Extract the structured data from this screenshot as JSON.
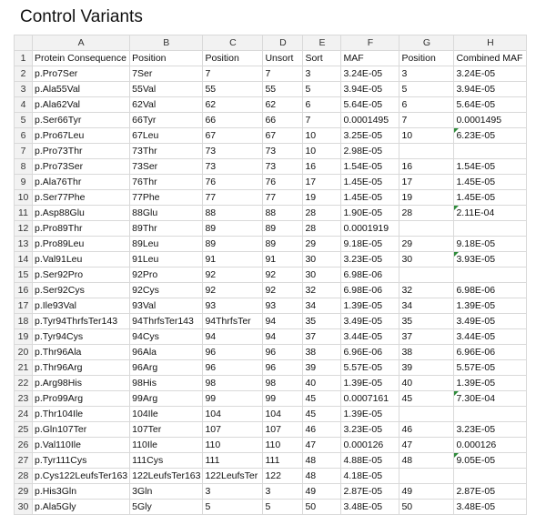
{
  "title": "Control Variants",
  "columns": [
    "A",
    "B",
    "C",
    "D",
    "E",
    "F",
    "G",
    "H"
  ],
  "indicator_color": "#2e8b3a",
  "rows": [
    {
      "num": "1",
      "cells": [
        "Protein Consequence",
        "Position",
        "Position",
        "Unsort",
        "Sort",
        "MAF",
        "Position",
        "Combined MAF"
      ],
      "flags": []
    },
    {
      "num": "2",
      "cells": [
        "p.Pro7Ser",
        "7Ser",
        "7",
        "7",
        "3",
        "3.24E-05",
        "3",
        "3.24E-05"
      ],
      "flags": []
    },
    {
      "num": "3",
      "cells": [
        "p.Ala55Val",
        "55Val",
        "55",
        "55",
        "5",
        "3.94E-05",
        "5",
        "3.94E-05"
      ],
      "flags": []
    },
    {
      "num": "4",
      "cells": [
        "p.Ala62Val",
        "62Val",
        "62",
        "62",
        "6",
        "5.64E-05",
        "6",
        "5.64E-05"
      ],
      "flags": []
    },
    {
      "num": "5",
      "cells": [
        "p.Ser66Tyr",
        "66Tyr",
        "66",
        "66",
        "7",
        "0.0001495",
        "7",
        "0.0001495"
      ],
      "flags": []
    },
    {
      "num": "6",
      "cells": [
        "p.Pro67Leu",
        "67Leu",
        "67",
        "67",
        "10",
        "3.25E-05",
        "10",
        "6.23E-05"
      ],
      "flags": [
        7
      ]
    },
    {
      "num": "7",
      "cells": [
        "p.Pro73Thr",
        "73Thr",
        "73",
        "73",
        "10",
        "2.98E-05",
        "",
        ""
      ],
      "flags": []
    },
    {
      "num": "8",
      "cells": [
        "p.Pro73Ser",
        "73Ser",
        "73",
        "73",
        "16",
        "1.54E-05",
        "16",
        "1.54E-05"
      ],
      "flags": []
    },
    {
      "num": "9",
      "cells": [
        "p.Ala76Thr",
        "76Thr",
        "76",
        "76",
        "17",
        "1.45E-05",
        "17",
        "1.45E-05"
      ],
      "flags": []
    },
    {
      "num": "10",
      "cells": [
        "p.Ser77Phe",
        "77Phe",
        "77",
        "77",
        "19",
        "1.45E-05",
        "19",
        "1.45E-05"
      ],
      "flags": []
    },
    {
      "num": "11",
      "cells": [
        "p.Asp88Glu",
        "88Glu",
        "88",
        "88",
        "28",
        "1.90E-05",
        "28",
        "2.11E-04"
      ],
      "flags": [
        7
      ]
    },
    {
      "num": "12",
      "cells": [
        "p.Pro89Thr",
        "89Thr",
        "89",
        "89",
        "28",
        "0.0001919",
        "",
        ""
      ],
      "flags": []
    },
    {
      "num": "13",
      "cells": [
        "p.Pro89Leu",
        "89Leu",
        "89",
        "89",
        "29",
        "9.18E-05",
        "29",
        "9.18E-05"
      ],
      "flags": []
    },
    {
      "num": "14",
      "cells": [
        "p.Val91Leu",
        "91Leu",
        "91",
        "91",
        "30",
        "3.23E-05",
        "30",
        "3.93E-05"
      ],
      "flags": [
        7
      ]
    },
    {
      "num": "15",
      "cells": [
        "p.Ser92Pro",
        "92Pro",
        "92",
        "92",
        "30",
        "6.98E-06",
        "",
        ""
      ],
      "flags": []
    },
    {
      "num": "16",
      "cells": [
        "p.Ser92Cys",
        "92Cys",
        "92",
        "92",
        "32",
        "6.98E-06",
        "32",
        "6.98E-06"
      ],
      "flags": []
    },
    {
      "num": "17",
      "cells": [
        "p.Ile93Val",
        "93Val",
        "93",
        "93",
        "34",
        "1.39E-05",
        "34",
        "1.39E-05"
      ],
      "flags": []
    },
    {
      "num": "18",
      "cells": [
        "p.Tyr94ThrfsTer143",
        "94ThrfsTer143",
        "94ThrfsTer",
        "94",
        "35",
        "3.49E-05",
        "35",
        "3.49E-05"
      ],
      "flags": []
    },
    {
      "num": "19",
      "cells": [
        "p.Tyr94Cys",
        "94Cys",
        "94",
        "94",
        "37",
        "3.44E-05",
        "37",
        "3.44E-05"
      ],
      "flags": []
    },
    {
      "num": "20",
      "cells": [
        "p.Thr96Ala",
        "96Ala",
        "96",
        "96",
        "38",
        "6.96E-06",
        "38",
        "6.96E-06"
      ],
      "flags": []
    },
    {
      "num": "21",
      "cells": [
        "p.Thr96Arg",
        "96Arg",
        "96",
        "96",
        "39",
        "5.57E-05",
        "39",
        "5.57E-05"
      ],
      "flags": []
    },
    {
      "num": "22",
      "cells": [
        "p.Arg98His",
        "98His",
        "98",
        "98",
        "40",
        "1.39E-05",
        "40",
        "1.39E-05"
      ],
      "flags": []
    },
    {
      "num": "23",
      "cells": [
        "p.Pro99Arg",
        "99Arg",
        "99",
        "99",
        "45",
        "0.0007161",
        "45",
        "7.30E-04"
      ],
      "flags": [
        7
      ]
    },
    {
      "num": "24",
      "cells": [
        "p.Thr104Ile",
        "104Ile",
        "104",
        "104",
        "45",
        "1.39E-05",
        "",
        ""
      ],
      "flags": []
    },
    {
      "num": "25",
      "cells": [
        "p.Gln107Ter",
        "107Ter",
        "107",
        "107",
        "46",
        "3.23E-05",
        "46",
        "3.23E-05"
      ],
      "flags": []
    },
    {
      "num": "26",
      "cells": [
        "p.Val110Ile",
        "110Ile",
        "110",
        "110",
        "47",
        "0.000126",
        "47",
        "0.000126"
      ],
      "flags": []
    },
    {
      "num": "27",
      "cells": [
        "p.Tyr111Cys",
        "111Cys",
        "111",
        "111",
        "48",
        "4.88E-05",
        "48",
        "9.05E-05"
      ],
      "flags": [
        7
      ]
    },
    {
      "num": "28",
      "cells": [
        "p.Cys122LeufsTer163",
        "122LeufsTer163",
        "122LeufsTer",
        "122",
        "48",
        "4.18E-05",
        "",
        ""
      ],
      "flags": []
    },
    {
      "num": "29",
      "cells": [
        "p.His3Gln",
        "3Gln",
        "3",
        "3",
        "49",
        "2.87E-05",
        "49",
        "2.87E-05"
      ],
      "flags": []
    },
    {
      "num": "30",
      "cells": [
        "p.Ala5Gly",
        "5Gly",
        "5",
        "5",
        "50",
        "3.48E-05",
        "50",
        "3.48E-05"
      ],
      "flags": []
    }
  ]
}
